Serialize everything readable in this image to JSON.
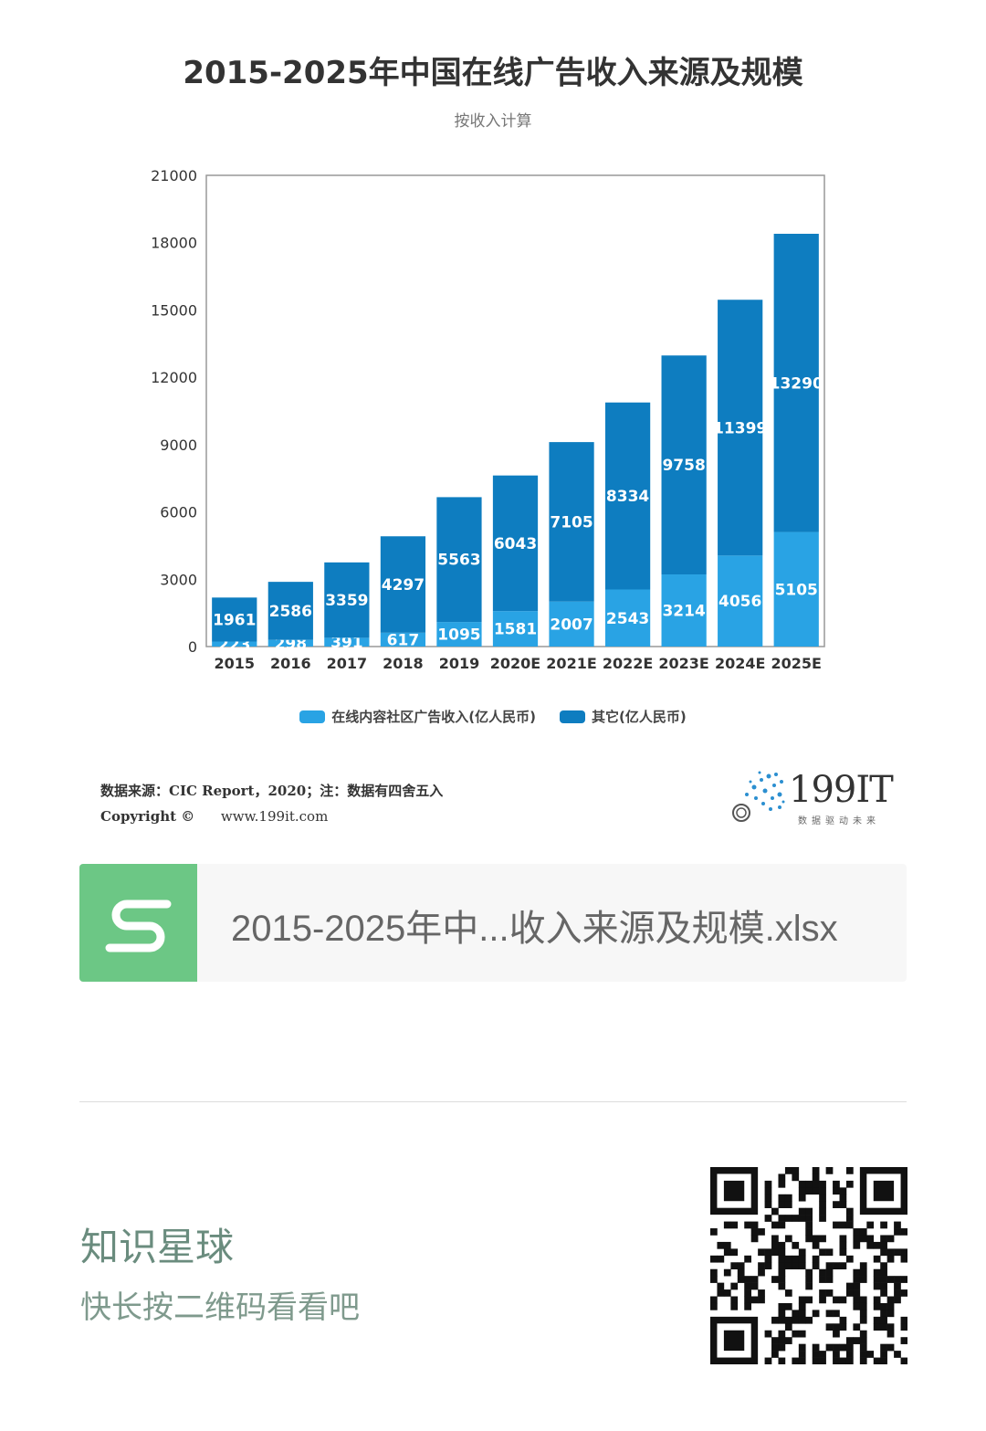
{
  "chart_data": {
    "type": "bar",
    "stacked": true,
    "title": "2015-2025年中国在线广告收入来源及规模",
    "subtitle": "按收入计算",
    "categories": [
      "2015",
      "2016",
      "2017",
      "2018",
      "2019",
      "2020E",
      "2021E",
      "2022E",
      "2023E",
      "2024E",
      "2025E"
    ],
    "series": [
      {
        "name": "在线内容社区广告收入(亿人民币)",
        "color": "#29a3e4",
        "values": [
          223,
          298,
          391,
          617,
          1095,
          1581,
          2007,
          2543,
          3214,
          4056,
          5105
        ]
      },
      {
        "name": "其它(亿人民币)",
        "color": "#0e7dc0",
        "values": [
          1961,
          2586,
          3359,
          4297,
          5563,
          6043,
          7105,
          8334,
          9758,
          11399,
          13290
        ]
      }
    ],
    "ylim": [
      0,
      21000
    ],
    "yticks": [
      0,
      3000,
      6000,
      9000,
      12000,
      15000,
      18000,
      21000
    ],
    "legend_position": "bottom"
  },
  "source": {
    "line1": "数据来源：CIC Report，2020；注：数据有四舍五入",
    "line2_label": "Copyright ©",
    "line2_url": "www.199it.com"
  },
  "logo": {
    "text": "199IT",
    "tagline": "数据驱动未来"
  },
  "file": {
    "name": "2015-2025年中...收入来源及规模.xlsx",
    "icon_letter": "S"
  },
  "promo": {
    "title": "知识星球",
    "subtitle": "快长按二维码看看吧"
  },
  "icons": {
    "file_icon": "spreadsheet-icon",
    "qr": "qr-code-icon",
    "logo": "199it-logo-icon"
  }
}
